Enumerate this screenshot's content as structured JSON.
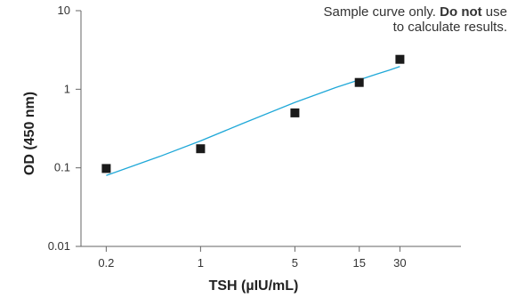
{
  "chart_data": {
    "type": "scatter",
    "xlabel": "TSH (µIU/mL)",
    "ylabel": "OD (450 nm)",
    "x_scale": "log",
    "y_scale": "log",
    "xlim": [
      0.13,
      85
    ],
    "ylim": [
      0.01,
      10
    ],
    "x_ticks": [
      {
        "value": 0.2,
        "label": "0.2"
      },
      {
        "value": 1,
        "label": "1"
      },
      {
        "value": 5,
        "label": "5"
      },
      {
        "value": 15,
        "label": "15"
      },
      {
        "value": 30,
        "label": "30"
      }
    ],
    "y_ticks": [
      {
        "value": 0.01,
        "label": "0.01"
      },
      {
        "value": 0.1,
        "label": "0.1"
      },
      {
        "value": 1,
        "label": "1"
      },
      {
        "value": 10,
        "label": "10"
      }
    ],
    "points": {
      "marker": "square",
      "color": "#1a1a1a",
      "x": [
        0.2,
        1,
        5,
        15,
        30
      ],
      "y": [
        0.098,
        0.175,
        0.5,
        1.22,
        2.4
      ]
    },
    "fit_curve": {
      "color": "#1fa8d8",
      "x": [
        0.2,
        0.5,
        1,
        2,
        5,
        10,
        15,
        20,
        25,
        30
      ],
      "y": [
        0.08,
        0.14,
        0.22,
        0.36,
        0.68,
        1.05,
        1.32,
        1.55,
        1.75,
        1.95
      ]
    },
    "grid": false,
    "annotation": {
      "line1_prefix": "Sample curve only. ",
      "line1_bold": "Do not",
      "line1_suffix": " use",
      "line2": "to calculate results."
    }
  }
}
